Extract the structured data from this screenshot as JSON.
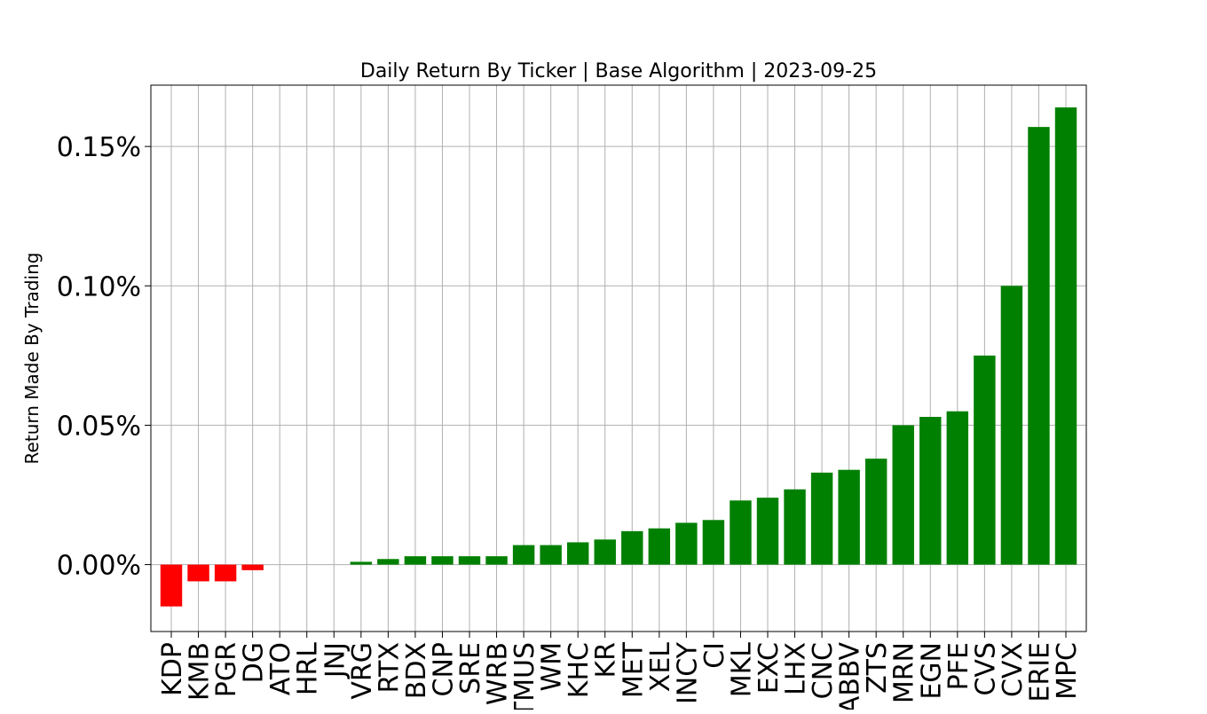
{
  "chart_data": {
    "type": "bar",
    "title": "Daily Return By Ticker | Base Algorithm | 2023-09-25",
    "xlabel": "",
    "ylabel": "Return Made By Trading",
    "categories": [
      "KDP",
      "KMB",
      "PGR",
      "DG",
      "ATO",
      "HRL",
      "JNJ",
      "VRG",
      "RTX",
      "BDX",
      "CNP",
      "SRE",
      "WRB",
      "TMUS",
      "WM",
      "KHC",
      "KR",
      "MET",
      "XEL",
      "INCY",
      "CI",
      "MKL",
      "EXC",
      "LHX",
      "CNC",
      "ABBV",
      "ZTS",
      "MRN",
      "EGN",
      "PFE",
      "CVS",
      "CVX",
      "ERIE",
      "MPC"
    ],
    "values": [
      -0.015,
      -0.006,
      -0.006,
      -0.002,
      0.0,
      0.0,
      0.0,
      0.001,
      0.002,
      0.003,
      0.003,
      0.003,
      0.003,
      0.007,
      0.007,
      0.008,
      0.009,
      0.012,
      0.013,
      0.015,
      0.016,
      0.023,
      0.024,
      0.027,
      0.033,
      0.034,
      0.038,
      0.05,
      0.053,
      0.055,
      0.075,
      0.1,
      0.157,
      0.164
    ],
    "ylim": [
      -0.024,
      0.172
    ],
    "yticks": [
      0.0,
      0.05,
      0.1,
      0.15
    ],
    "ytick_labels": [
      "0.00%",
      "0.05%",
      "0.10%",
      "0.15%"
    ],
    "grid": true,
    "colors": {
      "positive": "#008000",
      "negative": "#ff0000",
      "grid": "#b0b0b0"
    }
  }
}
